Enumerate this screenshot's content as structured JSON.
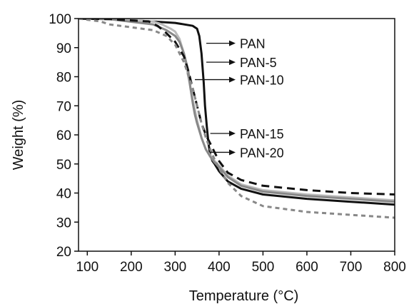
{
  "chart_data": {
    "type": "line",
    "title": "",
    "xlabel": "Temperature (°C)",
    "ylabel": "Weight (%)",
    "xlim": [
      80,
      800
    ],
    "ylim": [
      20,
      100
    ],
    "xticks": [
      100,
      200,
      300,
      400,
      500,
      600,
      700,
      800
    ],
    "yticks": [
      20,
      30,
      40,
      50,
      60,
      70,
      80,
      90,
      100
    ],
    "grid": false,
    "legend": "none",
    "series": [
      {
        "name": "PAN",
        "color": "#111111",
        "dash": "solid",
        "width": 3,
        "x": [
          80,
          150,
          250,
          300,
          340,
          350,
          355,
          360,
          365,
          368,
          372,
          376,
          380,
          385,
          390,
          400,
          420,
          450,
          500,
          600,
          700,
          800
        ],
        "y": [
          100,
          99.8,
          99,
          98.5,
          97.5,
          96.5,
          94,
          88,
          78,
          70,
          63,
          57,
          53,
          51,
          50,
          47.5,
          44,
          41.5,
          39.5,
          38,
          37,
          36
        ]
      },
      {
        "name": "PAN-5",
        "color": "#bbbbbb",
        "dash": "solid",
        "width": 3,
        "x": [
          80,
          150,
          250,
          270,
          290,
          300,
          310,
          320,
          330,
          340,
          350,
          360,
          370,
          380,
          390,
          400,
          420,
          450,
          500,
          600,
          700,
          800
        ],
        "y": [
          100,
          99.8,
          99,
          98,
          96.5,
          95.5,
          93,
          88,
          80,
          72,
          65,
          59,
          55,
          53,
          51,
          49.5,
          46,
          43,
          41,
          39.5,
          38.5,
          37.5
        ]
      },
      {
        "name": "PAN-10",
        "color": "#888888",
        "dash": "solid",
        "width": 3,
        "x": [
          80,
          150,
          250,
          280,
          300,
          310,
          320,
          330,
          335,
          340,
          345,
          350,
          360,
          370,
          380,
          390,
          400,
          420,
          450,
          500,
          600,
          700,
          800
        ],
        "y": [
          100,
          99.8,
          98,
          96,
          94,
          92,
          88,
          82,
          76,
          71,
          67,
          64,
          59,
          55,
          52.5,
          50.5,
          49,
          45.5,
          42.5,
          40.5,
          39,
          38,
          37
        ]
      },
      {
        "name": "PAN-15",
        "color": "#111111",
        "dash": "11 7",
        "width": 3,
        "x": [
          80,
          150,
          240,
          260,
          280,
          300,
          320,
          330,
          340,
          350,
          360,
          370,
          380,
          390,
          400,
          420,
          450,
          500,
          600,
          700,
          800
        ],
        "y": [
          100,
          99.8,
          99,
          97.5,
          95,
          92,
          87,
          82,
          76,
          70,
          64,
          60,
          57,
          54,
          51,
          47,
          44.5,
          42.5,
          41,
          40,
          39.5
        ]
      },
      {
        "name": "PAN-20",
        "color": "#888888",
        "dash": "6 5",
        "width": 3,
        "x": [
          80,
          130,
          150,
          200,
          250,
          280,
          300,
          320,
          340,
          350,
          360,
          370,
          380,
          390,
          400,
          420,
          450,
          500,
          600,
          700,
          800
        ],
        "y": [
          100,
          99,
          98,
          97,
          96,
          94,
          91,
          85,
          76,
          70,
          64,
          59,
          55,
          51.5,
          48.5,
          43.5,
          39,
          35.5,
          33.5,
          32.5,
          31.5
        ]
      }
    ],
    "annotations": [
      {
        "label": "PAN",
        "series": "PAN",
        "point": [
          371,
          91.5
        ]
      },
      {
        "label": "PAN-5",
        "series": "PAN-5",
        "point": [
          371,
          85
        ]
      },
      {
        "label": "PAN-10",
        "series": "PAN-10",
        "point": [
          345,
          79
        ]
      },
      {
        "label": "PAN-15",
        "series": "PAN-15",
        "point": [
          380,
          60.5
        ]
      },
      {
        "label": "PAN-20",
        "series": "PAN-20",
        "point": [
          380,
          54
        ]
      }
    ]
  }
}
